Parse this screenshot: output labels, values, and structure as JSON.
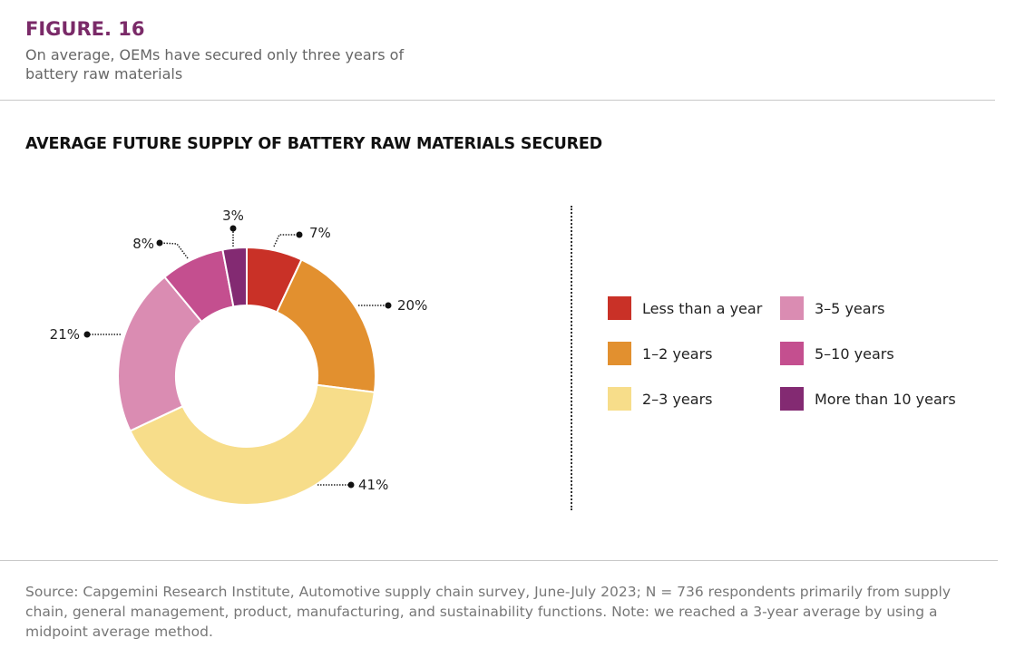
{
  "figure_label": "FIGURE. 16",
  "subtitle": "On average, OEMs have secured only three years of battery raw materials",
  "chart_data": {
    "type": "pie",
    "variant": "donut",
    "title": "AVERAGE FUTURE SUPPLY OF BATTERY RAW MATERIALS SECURED",
    "categories": [
      "Less than a year",
      "1–2 years",
      "2–3 years",
      "3–5 years",
      "5–10 years",
      "More than 10 years"
    ],
    "values": [
      7,
      20,
      41,
      21,
      8,
      3
    ],
    "labels": [
      "7%",
      "20%",
      "41%",
      "21%",
      "8%",
      "3%"
    ],
    "colors": [
      "#c93127",
      "#e2902f",
      "#f7dd8a",
      "#da8cb2",
      "#c44f8f",
      "#832a72"
    ],
    "legend_placement": "right",
    "start": "top, clockwise"
  },
  "source": "Source: Capgemini Research Institute, Automotive supply chain survey, June-July 2023; N = 736 respondents primarily from supply chain, general management, product, manufacturing, and sustainability functions. Note: we reached a 3-year average by using a midpoint average method."
}
